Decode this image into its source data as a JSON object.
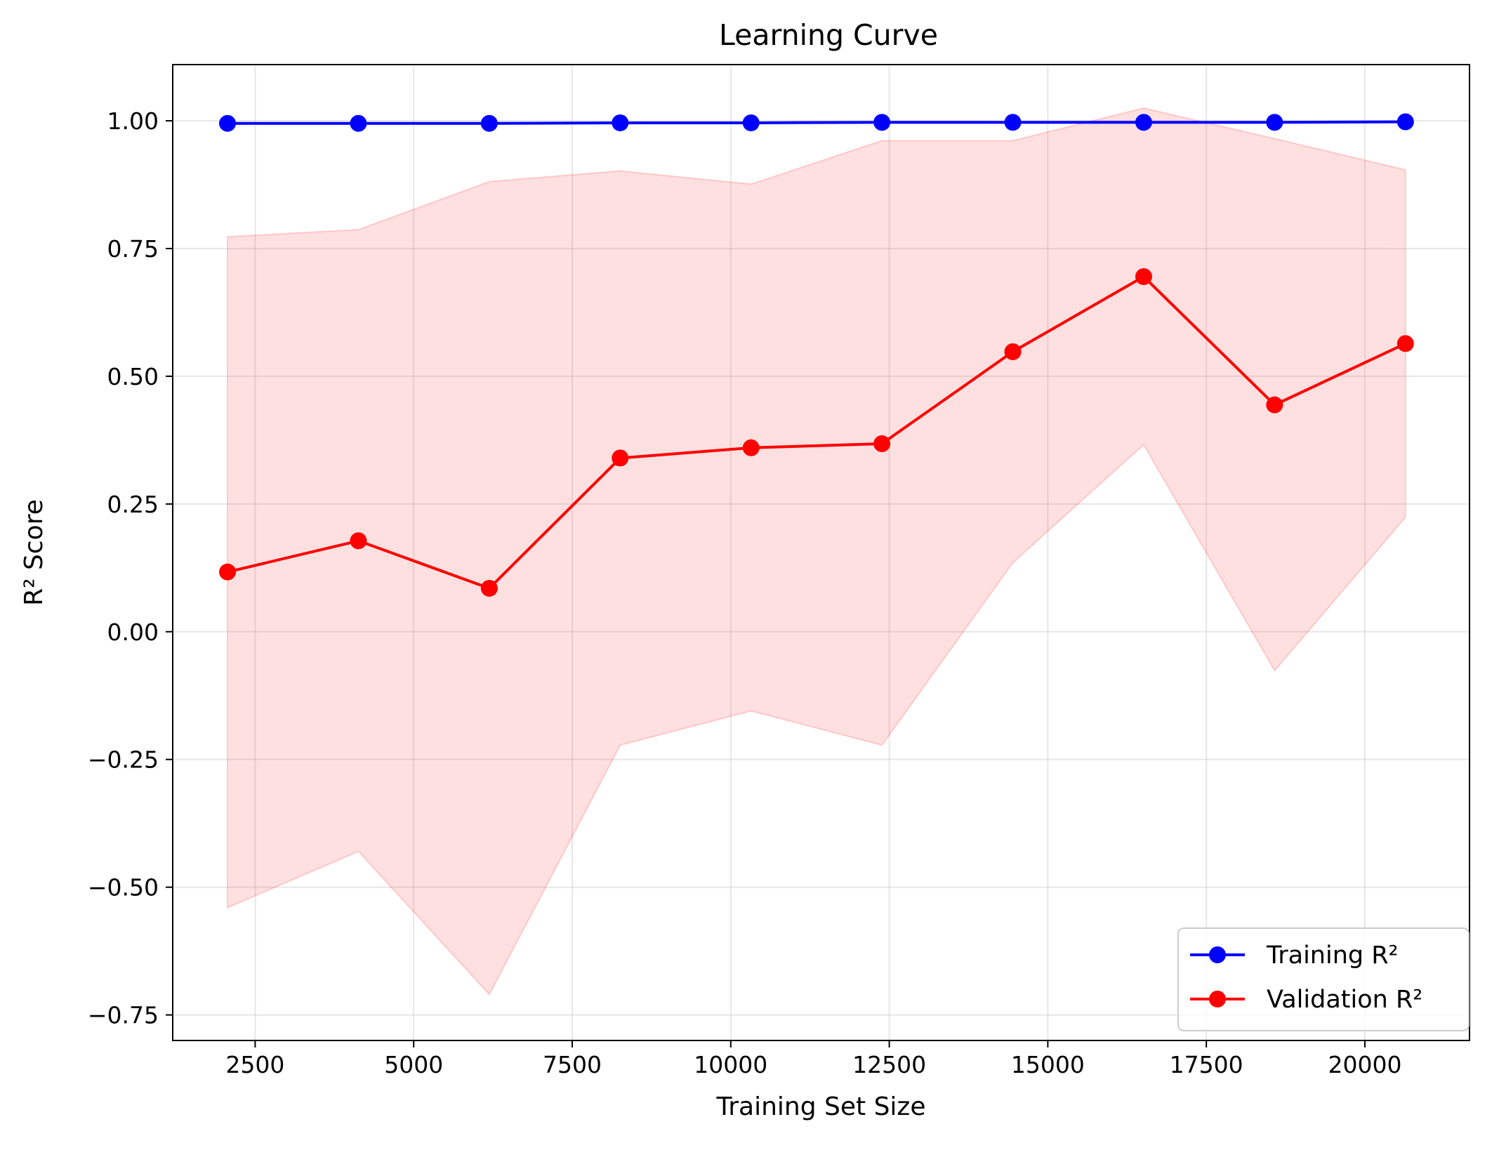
{
  "chart_data": {
    "type": "line",
    "title": "Learning Curve",
    "xlabel": "Training Set Size",
    "ylabel": "R² Score",
    "xlim": [
      1200,
      21650
    ],
    "ylim": [
      -0.8,
      1.11
    ],
    "xticks": [
      2500,
      5000,
      7500,
      10000,
      12500,
      15000,
      17500,
      20000
    ],
    "yticks": [
      -0.75,
      -0.5,
      -0.25,
      0.0,
      0.25,
      0.5,
      0.75,
      1.0
    ],
    "xtick_labels": [
      "2500",
      "5000",
      "7500",
      "10000",
      "12500",
      "15000",
      "17500",
      "20000"
    ],
    "ytick_labels": [
      "−0.75",
      "−0.50",
      "−0.25",
      "0.00",
      "0.25",
      "0.50",
      "0.75",
      "1.00"
    ],
    "grid": true,
    "legend_position": "bottom-right",
    "x": [
      2064,
      4128,
      6192,
      8256,
      10320,
      12384,
      14448,
      16512,
      18576,
      20640
    ],
    "series": [
      {
        "name": "Training R²",
        "color": "#0000ff",
        "marker": "circle",
        "values": [
          0.995,
          0.995,
          0.995,
          0.996,
          0.996,
          0.997,
          0.997,
          0.997,
          0.997,
          0.998
        ]
      },
      {
        "name": "Validation R²",
        "color": "#ff0000",
        "marker": "circle",
        "values": [
          0.117,
          0.178,
          0.085,
          0.34,
          0.36,
          0.368,
          0.548,
          0.695,
          0.444,
          0.564
        ],
        "band": {
          "color": "#ff0000",
          "opacity": 0.12,
          "upper": [
            0.773,
            0.787,
            0.881,
            0.902,
            0.876,
            0.961,
            0.961,
            1.025,
            0.965,
            0.904
          ],
          "lower": [
            -0.54,
            -0.43,
            -0.71,
            -0.222,
            -0.155,
            -0.222,
            0.135,
            0.366,
            -0.076,
            0.224
          ]
        }
      }
    ]
  }
}
